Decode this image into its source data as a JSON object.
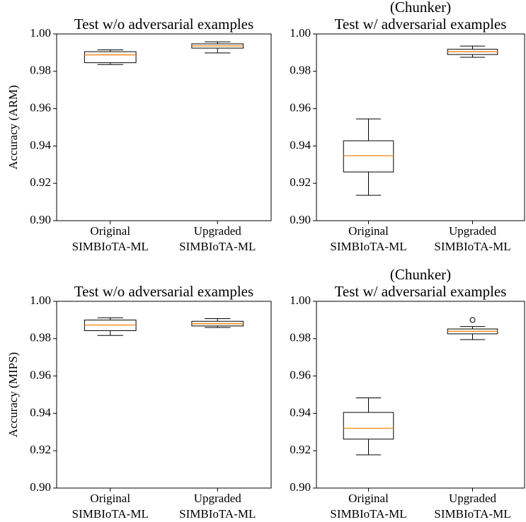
{
  "chart_data": [
    {
      "type": "box",
      "title": "Test w/o adversarial examples",
      "ylabel": "Accuracy (ARM)",
      "categories": [
        [
          "Original",
          "SIMBIoTA-ML"
        ],
        [
          "Upgraded",
          "SIMBIoTA-ML"
        ]
      ],
      "boxes": [
        {
          "whislo": 0.9836,
          "q1": 0.9846,
          "med": 0.9888,
          "q3": 0.9905,
          "whishi": 0.9915,
          "fliers": []
        },
        {
          "whislo": 0.9898,
          "q1": 0.9924,
          "med": 0.9936,
          "q3": 0.9947,
          "whishi": 0.9958,
          "fliers": []
        }
      ],
      "color": "#000000",
      "median_color": "#ff7f0e",
      "ylim": [
        0.9,
        1.0
      ],
      "yticks": [
        {
          "value": 0.9,
          "label": "0.90"
        },
        0.92,
        0.94,
        0.96,
        0.98,
        {
          "value": 1.0,
          "label": "1.00"
        }
      ]
    },
    {
      "type": "box",
      "suptitle": "(Chunker)",
      "title": "Test w/ adversarial examples",
      "categories": [
        [
          "Original",
          "SIMBIoTA-ML"
        ],
        [
          "Upgraded",
          "SIMBIoTA-ML"
        ]
      ],
      "boxes": [
        {
          "whislo": 0.9136,
          "q1": 0.9261,
          "med": 0.9348,
          "q3": 0.9428,
          "whishi": 0.9545,
          "fliers": []
        },
        {
          "whislo": 0.9875,
          "q1": 0.989,
          "med": 0.9905,
          "q3": 0.9918,
          "whishi": 0.9935,
          "fliers": []
        }
      ],
      "color": "#000000",
      "median_color": "#ff7f0e",
      "ylim": [
        0.9,
        1.0
      ],
      "yticks": [
        {
          "value": 0.9,
          "label": "0.90"
        },
        0.92,
        0.94,
        0.96,
        0.98,
        {
          "value": 1.0,
          "label": "1.00"
        }
      ]
    },
    {
      "type": "box",
      "title": "Test w/o adversarial examples",
      "ylabel": "Accuracy (MIPS)",
      "categories": [
        [
          "Original",
          "SIMBIoTA-ML"
        ],
        [
          "Upgraded",
          "SIMBIoTA-ML"
        ]
      ],
      "boxes": [
        {
          "whislo": 0.9817,
          "q1": 0.9843,
          "med": 0.9873,
          "q3": 0.99,
          "whishi": 0.9912,
          "fliers": []
        },
        {
          "whislo": 0.986,
          "q1": 0.9868,
          "med": 0.988,
          "q3": 0.9893,
          "whishi": 0.9907,
          "fliers": []
        }
      ],
      "color": "#000000",
      "median_color": "#ff7f0e",
      "ylim": [
        0.9,
        1.0
      ],
      "yticks": [
        {
          "value": 0.9,
          "label": "0.90"
        },
        0.92,
        0.94,
        0.96,
        0.98,
        {
          "value": 1.0,
          "label": "1.00"
        }
      ]
    },
    {
      "type": "box",
      "suptitle": "(Chunker)",
      "title": "Test w/ adversarial examples",
      "categories": [
        [
          "Original",
          "SIMBIoTA-ML"
        ],
        [
          "Upgraded",
          "SIMBIoTA-ML"
        ]
      ],
      "boxes": [
        {
          "whislo": 0.9178,
          "q1": 0.9262,
          "med": 0.932,
          "q3": 0.9405,
          "whishi": 0.9483,
          "fliers": []
        },
        {
          "whislo": 0.9795,
          "q1": 0.9826,
          "med": 0.984,
          "q3": 0.9852,
          "whishi": 0.9865,
          "fliers": [
            0.99
          ]
        }
      ],
      "color": "#000000",
      "median_color": "#ff7f0e",
      "ylim": [
        0.9,
        1.0
      ],
      "yticks": [
        {
          "value": 0.9,
          "label": "0.90"
        },
        0.92,
        0.94,
        0.96,
        0.98,
        {
          "value": 1.0,
          "label": "1.00"
        }
      ]
    }
  ]
}
